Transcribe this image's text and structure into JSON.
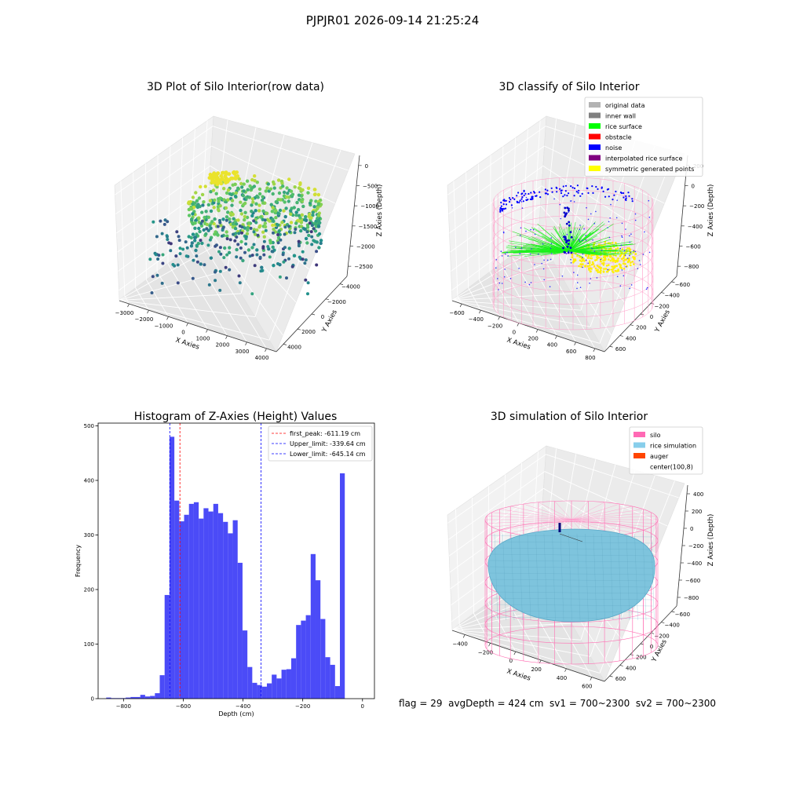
{
  "suptitle": "PJPJR01 2026-09-14 21:25:24",
  "status_text": "flag = 29  avgDepth = 424 cm  sv1 = 700~2300  sv2 = 700~2300",
  "chart_data": [
    {
      "type": "scatter3d",
      "title": "3D Plot of Silo Interior(row data)",
      "xlabel": "X Axies",
      "ylabel": "Y Axies",
      "zlabel": "Z Axies (Depth)",
      "x_ticks": [
        "−3000",
        "−2000",
        "−1000",
        "0",
        "1000",
        "2000",
        "3000",
        "4000"
      ],
      "y_ticks": [
        "4000",
        "2000",
        "0",
        "−2000",
        "−4000"
      ],
      "z_ticks": [
        "0",
        "−500",
        "−1000",
        "−1500",
        "−2000",
        "−2500"
      ],
      "colormap": "viridis"
    },
    {
      "type": "scatter3d",
      "title": "3D classify of Silo Interior",
      "xlabel": "X Axies",
      "ylabel": "Y Axies",
      "zlabel": "Z Axies (Depth)",
      "x_ticks": [
        "−600",
        "−400",
        "−200",
        "0",
        "200",
        "400",
        "600",
        "800"
      ],
      "y_ticks": [
        "600",
        "400",
        "200",
        "0",
        "−200",
        "−400",
        "−600"
      ],
      "z_ticks": [
        "200",
        "0",
        "−200",
        "−400",
        "−600",
        "−800"
      ],
      "legend_position": "top-right",
      "legend": [
        {
          "label": "original data",
          "color": "#b3b3b3"
        },
        {
          "label": "inner wall",
          "color": "#808080"
        },
        {
          "label": "rice surface",
          "color": "#00ff00"
        },
        {
          "label": "obstacle",
          "color": "#ff0000"
        },
        {
          "label": "noise",
          "color": "#0000ff"
        },
        {
          "label": "interpolated rice surface",
          "color": "#800080"
        },
        {
          "label": "symmetric generated points",
          "color": "#ffff00"
        }
      ]
    },
    {
      "type": "bar",
      "title": "Histogram of Z-Axies (Height) Values",
      "xlabel": "Depth (cm)",
      "ylabel": "Frequency",
      "xlim": [
        -885,
        40
      ],
      "ylim": [
        0,
        505
      ],
      "x_ticks": [
        -800,
        -600,
        -400,
        -200,
        0
      ],
      "y_ticks": [
        0,
        100,
        200,
        300,
        400,
        500
      ],
      "bar_color": "#4b4bf7",
      "bin_start": -858,
      "bin_width": 16.3,
      "values": [
        2,
        1,
        1,
        1,
        2,
        3,
        3,
        7,
        4,
        5,
        10,
        43,
        190,
        480,
        363,
        325,
        337,
        357,
        360,
        330,
        349,
        343,
        357,
        340,
        324,
        303,
        327,
        249,
        125,
        58,
        29,
        25,
        22,
        28,
        44,
        37,
        53,
        54,
        74,
        135,
        143,
        153,
        265,
        217,
        146,
        76,
        62,
        23,
        413
      ],
      "vlines": [
        {
          "name": "first_peak",
          "label": "first_peak: -611.19 cm",
          "value": -611.19,
          "color": "#ff0000"
        },
        {
          "name": "Upper_limit",
          "label": "Upper_limit: -339.64 cm",
          "value": -339.64,
          "color": "#0000ff"
        },
        {
          "name": "Lower_limit",
          "label": "Lower_limit: -645.14 cm",
          "value": -645.14,
          "color": "#0000ff"
        }
      ],
      "legend_position": "top-right"
    },
    {
      "type": "surface3d",
      "title": "3D simulation of Silo Interior",
      "xlabel": "X Axies",
      "ylabel": "Y Axies",
      "zlabel": "Z Axies (Depth)",
      "x_ticks": [
        "−400",
        "−200",
        "0",
        "200",
        "400",
        "600"
      ],
      "y_ticks": [
        "600",
        "400",
        "200",
        "0",
        "−200",
        "−400",
        "−600"
      ],
      "z_ticks": [
        "400",
        "200",
        "0",
        "−200",
        "−400",
        "−600",
        "−800"
      ],
      "legend_position": "top-right",
      "legend": [
        {
          "label": "silo",
          "color": "#ff69b4"
        },
        {
          "label": "rice simulation",
          "color": "#87ceeb"
        },
        {
          "label": "auger",
          "color": "#ff4500"
        },
        {
          "label": "center(100,8)",
          "color": "#ffffff"
        }
      ]
    }
  ]
}
